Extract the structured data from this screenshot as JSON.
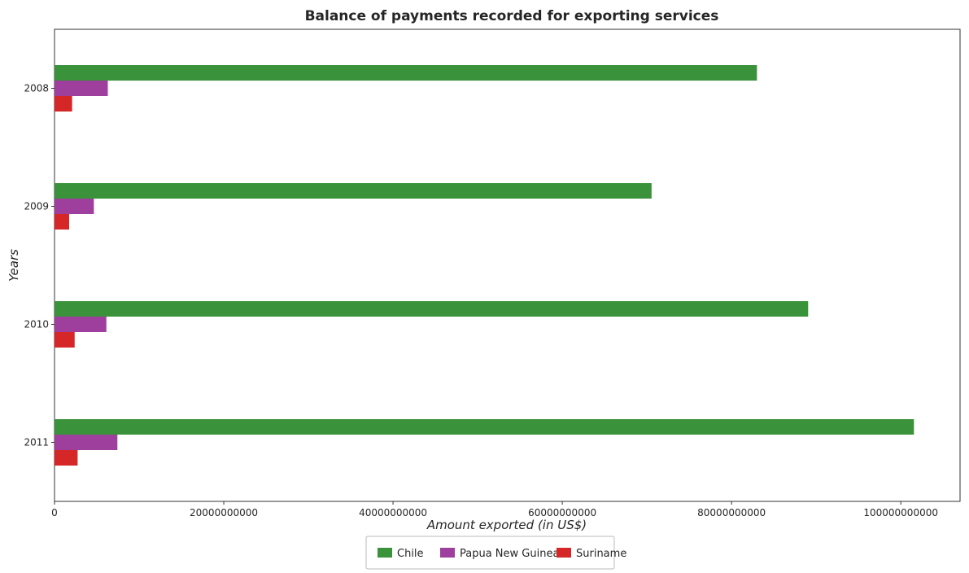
{
  "chart_data": {
    "type": "bar",
    "orientation": "horizontal",
    "title": "Balance of payments recorded for exporting services",
    "xlabel": "Amount exported (in US$)",
    "ylabel": "Years",
    "categories": [
      "2008",
      "2009",
      "2010",
      "2011"
    ],
    "series": [
      {
        "name": "Chile",
        "color": "#3a923a",
        "values": [
          83000000000,
          70550000000,
          89050000000,
          101550000000
        ]
      },
      {
        "name": "Papua New Guinea",
        "color": "#9e3f9e",
        "values": [
          6300000000,
          4650000000,
          6130000000,
          7430000000
        ]
      },
      {
        "name": "Suriname",
        "color": "#d62728",
        "values": [
          2080000000,
          1730000000,
          2380000000,
          2730000000
        ]
      }
    ],
    "xlim": [
      0,
      107000000000
    ],
    "xticks": [
      0,
      20000000000,
      40000000000,
      60000000000,
      80000000000,
      100000000000
    ],
    "xtick_labels": [
      "0",
      "20000000000",
      "40000000000",
      "60000000000",
      "80000000000",
      "100000000000"
    ],
    "grid": false,
    "legend_position": "bottom-center"
  }
}
